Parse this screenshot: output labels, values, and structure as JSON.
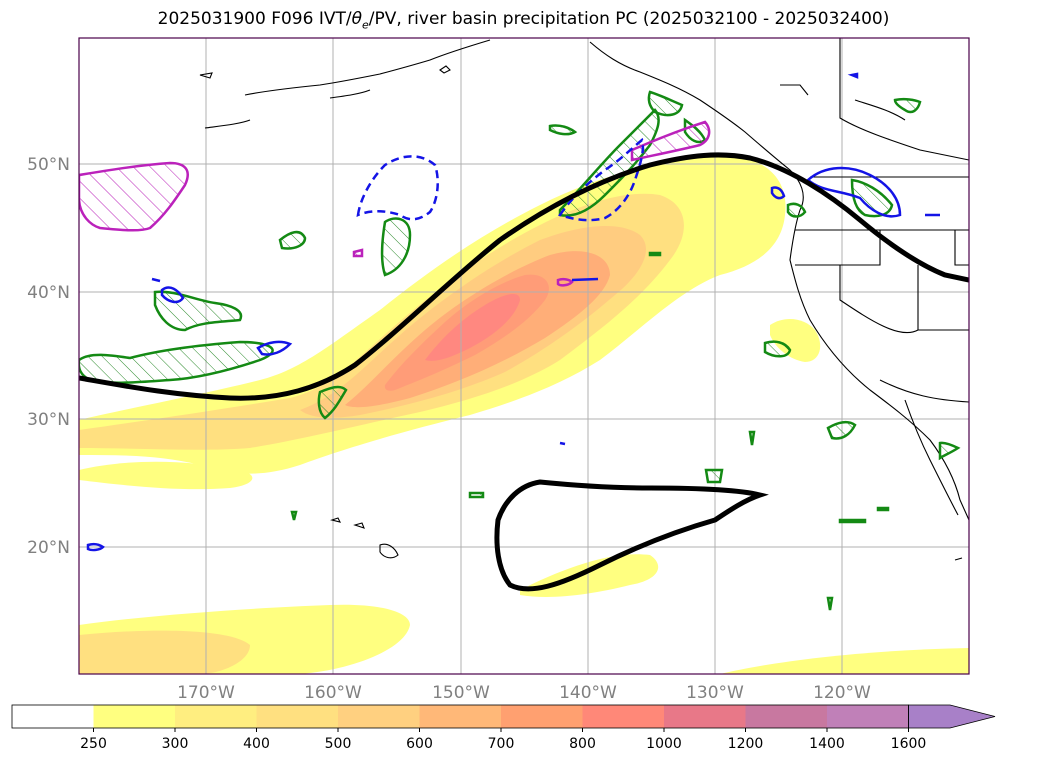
{
  "title": {
    "prefix": "2025031900 F096 IVT/",
    "theta": "θ",
    "theta_sub": "e",
    "suffix": "/PV, river basin precipitation PC (2025032100 - 2025032400)"
  },
  "map": {
    "lat_labels": [
      "50°N",
      "40°N",
      "30°N",
      "20°N"
    ],
    "lon_labels": [
      "170°W",
      "160°W",
      "150°W",
      "140°W",
      "130°W",
      "120°W"
    ]
  },
  "colorbar": {
    "labels": [
      "250",
      "300",
      "400",
      "500",
      "600",
      "700",
      "800",
      "1000",
      "1200",
      "1400",
      "1600"
    ],
    "colors": [
      "#ffffff",
      "#ffff80",
      "#ffee80",
      "#ffe080",
      "#ffd080",
      "#ffb878",
      "#ffa070",
      "#ff8878",
      "#e87888",
      "#c878a0",
      "#c080b8",
      "#a880c8"
    ]
  }
}
